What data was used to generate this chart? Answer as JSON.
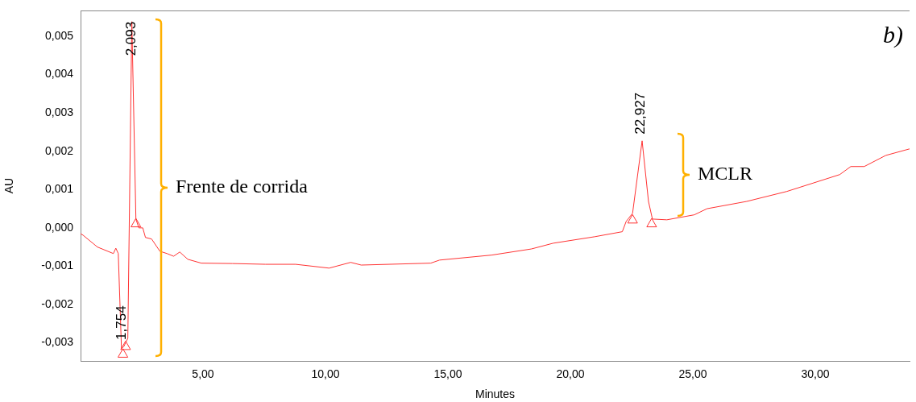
{
  "chart_data": {
    "type": "line",
    "xlabel": "Minutes",
    "ylabel": "AU",
    "xlim": [
      0,
      33.85
    ],
    "ylim": [
      -0.00347,
      0.00567
    ],
    "xticks": [
      {
        "value": 5,
        "label": "5,00"
      },
      {
        "value": 10,
        "label": "10,00"
      },
      {
        "value": 15,
        "label": "15,00"
      },
      {
        "value": 20,
        "label": "20,00"
      },
      {
        "value": 25,
        "label": "25,00"
      },
      {
        "value": 30,
        "label": "30,00"
      }
    ],
    "yticks": [
      {
        "value": -0.003,
        "label": "-0,003"
      },
      {
        "value": -0.002,
        "label": "-0,002"
      },
      {
        "value": -0.001,
        "label": "-0,001"
      },
      {
        "value": 0,
        "label": "0,000"
      },
      {
        "value": 0.001,
        "label": "0,001"
      },
      {
        "value": 0.002,
        "label": "0,002"
      },
      {
        "value": 0.003,
        "label": "0,003"
      },
      {
        "value": 0.004,
        "label": "0,004"
      },
      {
        "value": 0.005,
        "label": "0,005"
      }
    ],
    "grid": false,
    "legend": false,
    "series": [
      {
        "color": "#ff3333",
        "marker": "none",
        "x": [
          0,
          0.1,
          0.69,
          1.34,
          1.44,
          1.54,
          1.67,
          1.77,
          1.93,
          2.093,
          2.26,
          2.38,
          2.54,
          2.65,
          2.9,
          3.24,
          3.53,
          3.8,
          4.05,
          4.38,
          4.93,
          6.2,
          7.55,
          8.78,
          10.15,
          11.03,
          11.46,
          14.3,
          14.66,
          16.78,
          18.41,
          19.3,
          21.0,
          22.12,
          22.28,
          22.54,
          22.93,
          23.19,
          23.35,
          23.94,
          25.06,
          25.58,
          27.2,
          28.84,
          31.0,
          31.45,
          32.0,
          32.88,
          33.85
        ],
        "values": [
          -0.00015,
          -0.00019,
          -0.0005,
          -0.00067,
          -0.00053,
          -0.00067,
          -0.00315,
          -0.00309,
          -0.00288,
          0.00538,
          0.00023,
          0,
          0,
          -0.00025,
          -0.00029,
          -0.00061,
          -0.00067,
          -0.00074,
          -0.00063,
          -0.00082,
          -0.00092,
          -0.00093,
          -0.00095,
          -0.00095,
          -0.00105,
          -0.0009,
          -0.00097,
          -0.00092,
          -0.00084,
          -0.00071,
          -0.00055,
          -0.0004,
          -0.00023,
          -0.0001,
          0.00017,
          0.00038,
          0.00227,
          0.00069,
          0.00023,
          0.00021,
          0.00034,
          0.0005,
          0.00069,
          0.00095,
          0.00139,
          0.0016,
          0.0016,
          0.00189,
          0.00206
        ]
      },
      {
        "type": "scatter",
        "color": "#ff3333",
        "marker": "triangle",
        "x": [
          1.73,
          1.84,
          2.26,
          22.54,
          23.32
        ],
        "values": [
          -0.0033,
          -0.0031,
          0.0001,
          0.0002,
          0.0001
        ]
      }
    ],
    "annotations": [
      {
        "text": "2,093",
        "x": 2.093,
        "y": 0.00538
      },
      {
        "text": "1,754",
        "x": 1.754,
        "y": -0.00309
      },
      {
        "text": "22,927",
        "x": 22.927,
        "y": 0.00227
      },
      "Frente de corrida",
      "MCLR",
      "b)"
    ]
  }
}
